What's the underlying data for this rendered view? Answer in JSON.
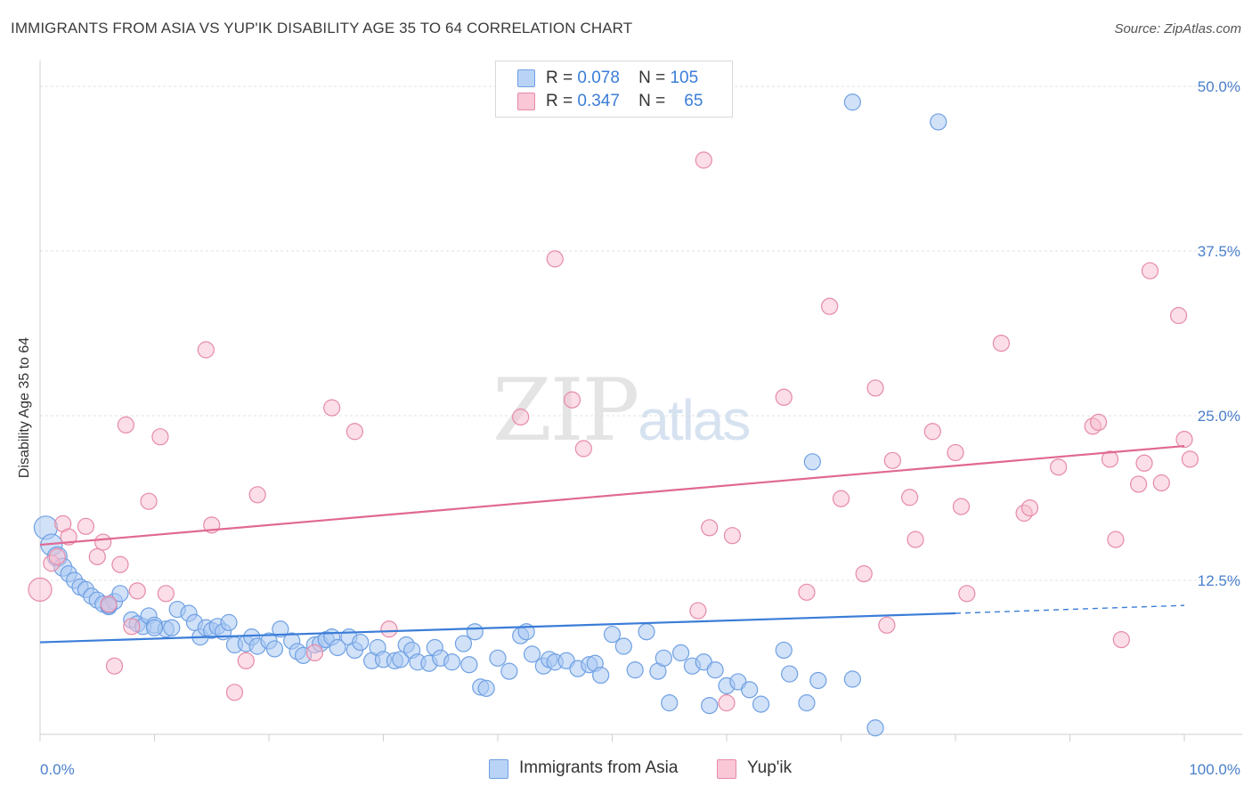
{
  "title": "IMMIGRANTS FROM ASIA VS YUP'IK DISABILITY AGE 35 TO 64 CORRELATION CHART",
  "source": "Source: ZipAtlas.com",
  "watermark": {
    "zip": "ZIP",
    "atlas": "atlas"
  },
  "legend": {
    "rows": [
      {
        "r_label": "R =",
        "r_value": "0.078",
        "n_label": "N =",
        "n_value": "105",
        "color": "#6fa0e3",
        "fill": "#b9d3f6"
      },
      {
        "r_label": "R =",
        "r_value": "0.347",
        "n_label": "N =",
        "n_value": "65",
        "color": "#e68aa8",
        "fill": "#f9c7d6"
      }
    ]
  },
  "bottom_legend": [
    {
      "label": "Immigrants from Asia",
      "color": "#6fa0e3",
      "fill": "#b9d3f6"
    },
    {
      "label": "Yup'ik",
      "color": "#e68aa8",
      "fill": "#f9c7d6"
    }
  ],
  "chart_data": {
    "type": "scatter",
    "title": "IMMIGRANTS FROM ASIA VS YUP'IK DISABILITY AGE 35 TO 64 CORRELATION CHART",
    "xlabel": "",
    "ylabel": "Disability Age 35 to 64",
    "xlim": [
      0,
      100
    ],
    "ylim": [
      0,
      52
    ],
    "x_tick_labels": [
      "0.0%",
      "100.0%"
    ],
    "y_ticks": [
      12.5,
      25.0,
      37.5,
      50.0
    ],
    "y_tick_labels": [
      "12.5%",
      "25.0%",
      "37.5%",
      "50.0%"
    ],
    "grid": true,
    "legend_position": "top-center",
    "series": [
      {
        "name": "Immigrants from Asia",
        "color": "#3b7dd8",
        "point_color": "#6fa0e3",
        "r": 0.078,
        "n": 105,
        "trend": {
          "x0": 0,
          "y0": 7.8,
          "x1": 80,
          "y1": 10.0,
          "dash_x1": 100,
          "dash_y1": 10.6
        },
        "points": [
          [
            0.5,
            16.5
          ],
          [
            1,
            15.2
          ],
          [
            1.5,
            14.3
          ],
          [
            2,
            13.5
          ],
          [
            2.5,
            13.0
          ],
          [
            3,
            12.5
          ],
          [
            3.5,
            12.0
          ],
          [
            4,
            11.8
          ],
          [
            4.5,
            11.3
          ],
          [
            5,
            11.0
          ],
          [
            5.5,
            10.7
          ],
          [
            6,
            10.5
          ],
          [
            6.5,
            10.9
          ],
          [
            7,
            11.5
          ],
          [
            8,
            9.5
          ],
          [
            8.5,
            9.2
          ],
          [
            9,
            9.0
          ],
          [
            9.5,
            9.8
          ],
          [
            10,
            9.1
          ],
          [
            11,
            8.8
          ],
          [
            11.5,
            8.9
          ],
          [
            12,
            10.3
          ],
          [
            13,
            10.0
          ],
          [
            13.5,
            9.3
          ],
          [
            14,
            8.2
          ],
          [
            14.5,
            8.9
          ],
          [
            15,
            8.7
          ],
          [
            15.5,
            9.0
          ],
          [
            16,
            8.6
          ],
          [
            16.5,
            9.3
          ],
          [
            17,
            7.6
          ],
          [
            18,
            7.7
          ],
          [
            18.5,
            8.2
          ],
          [
            19,
            7.5
          ],
          [
            20,
            7.9
          ],
          [
            20.5,
            7.3
          ],
          [
            21,
            8.8
          ],
          [
            22,
            7.9
          ],
          [
            22.5,
            7.1
          ],
          [
            23,
            6.8
          ],
          [
            24,
            7.6
          ],
          [
            24.5,
            7.7
          ],
          [
            25,
            8.0
          ],
          [
            25.5,
            8.2
          ],
          [
            26,
            7.4
          ],
          [
            27,
            8.2
          ],
          [
            27.5,
            7.2
          ],
          [
            28,
            7.8
          ],
          [
            29,
            6.4
          ],
          [
            29.5,
            7.4
          ],
          [
            30,
            6.5
          ],
          [
            31,
            6.4
          ],
          [
            31.5,
            6.5
          ],
          [
            32,
            7.6
          ],
          [
            32.5,
            7.2
          ],
          [
            33,
            6.3
          ],
          [
            34,
            6.2
          ],
          [
            34.5,
            7.4
          ],
          [
            35,
            6.6
          ],
          [
            36,
            6.3
          ],
          [
            37,
            7.7
          ],
          [
            37.5,
            6.1
          ],
          [
            38,
            8.6
          ],
          [
            38.5,
            4.4
          ],
          [
            39,
            4.3
          ],
          [
            40,
            6.6
          ],
          [
            41,
            5.6
          ],
          [
            42,
            8.3
          ],
          [
            42.5,
            8.6
          ],
          [
            43,
            6.9
          ],
          [
            44,
            6.0
          ],
          [
            44.5,
            6.5
          ],
          [
            45,
            6.3
          ],
          [
            46,
            6.4
          ],
          [
            47,
            5.8
          ],
          [
            48,
            6.1
          ],
          [
            48.5,
            6.2
          ],
          [
            49,
            5.3
          ],
          [
            50,
            8.4
          ],
          [
            51,
            7.5
          ],
          [
            52,
            5.7
          ],
          [
            53,
            8.6
          ],
          [
            54,
            5.6
          ],
          [
            54.5,
            6.6
          ],
          [
            55,
            3.2
          ],
          [
            56,
            7.0
          ],
          [
            57,
            6.0
          ],
          [
            58,
            6.3
          ],
          [
            58.5,
            3.0
          ],
          [
            59,
            5.7
          ],
          [
            60,
            4.5
          ],
          [
            61,
            4.8
          ],
          [
            62,
            4.2
          ],
          [
            63,
            3.1
          ],
          [
            65,
            7.2
          ],
          [
            65.5,
            5.4
          ],
          [
            67,
            3.2
          ],
          [
            67.5,
            21.5
          ],
          [
            68,
            4.9
          ],
          [
            71,
            5.0
          ],
          [
            73,
            1.3
          ],
          [
            71,
            48.8
          ],
          [
            78.5,
            47.3
          ],
          [
            6,
            10.6
          ],
          [
            10,
            8.9
          ]
        ]
      },
      {
        "name": "Yup'ik",
        "color": "#e06893",
        "point_color": "#e68aa8",
        "r": 0.347,
        "n": 65,
        "trend": {
          "x0": 0,
          "y0": 15.2,
          "x1": 100,
          "y1": 22.7
        },
        "points": [
          [
            0,
            11.8
          ],
          [
            1,
            13.8
          ],
          [
            1.5,
            14.3
          ],
          [
            2,
            16.8
          ],
          [
            2.5,
            15.8
          ],
          [
            4,
            16.6
          ],
          [
            5,
            14.3
          ],
          [
            5.5,
            15.4
          ],
          [
            6,
            10.7
          ],
          [
            6.5,
            6.0
          ],
          [
            7,
            13.7
          ],
          [
            7.5,
            24.3
          ],
          [
            8,
            9.0
          ],
          [
            8.5,
            11.7
          ],
          [
            9.5,
            18.5
          ],
          [
            10.5,
            23.4
          ],
          [
            11,
            11.5
          ],
          [
            14.5,
            30.0
          ],
          [
            15,
            16.7
          ],
          [
            17,
            4.0
          ],
          [
            18,
            6.4
          ],
          [
            19,
            19.0
          ],
          [
            24,
            7.0
          ],
          [
            25.5,
            25.6
          ],
          [
            27.5,
            23.8
          ],
          [
            30.5,
            8.8
          ],
          [
            42,
            24.9
          ],
          [
            45,
            36.9
          ],
          [
            46.5,
            26.2
          ],
          [
            47.5,
            22.5
          ],
          [
            57.5,
            10.2
          ],
          [
            58,
            44.4
          ],
          [
            58.5,
            16.5
          ],
          [
            60,
            3.2
          ],
          [
            60.5,
            15.9
          ],
          [
            65,
            26.4
          ],
          [
            67,
            11.6
          ],
          [
            69,
            33.3
          ],
          [
            70,
            18.7
          ],
          [
            72,
            13.0
          ],
          [
            73,
            27.1
          ],
          [
            74,
            9.1
          ],
          [
            74.5,
            21.6
          ],
          [
            76,
            18.8
          ],
          [
            76.5,
            15.6
          ],
          [
            78,
            23.8
          ],
          [
            80,
            22.2
          ],
          [
            80.5,
            18.1
          ],
          [
            81,
            11.5
          ],
          [
            84,
            30.5
          ],
          [
            86,
            17.6
          ],
          [
            86.5,
            18.0
          ],
          [
            89,
            21.1
          ],
          [
            92,
            24.2
          ],
          [
            92.5,
            24.5
          ],
          [
            93.5,
            21.7
          ],
          [
            94,
            15.6
          ],
          [
            94.5,
            8.0
          ],
          [
            96,
            19.8
          ],
          [
            96.5,
            21.4
          ],
          [
            97,
            36.0
          ],
          [
            98,
            19.9
          ],
          [
            99.5,
            32.6
          ],
          [
            100,
            23.2
          ],
          [
            100.5,
            21.7
          ]
        ]
      }
    ]
  }
}
